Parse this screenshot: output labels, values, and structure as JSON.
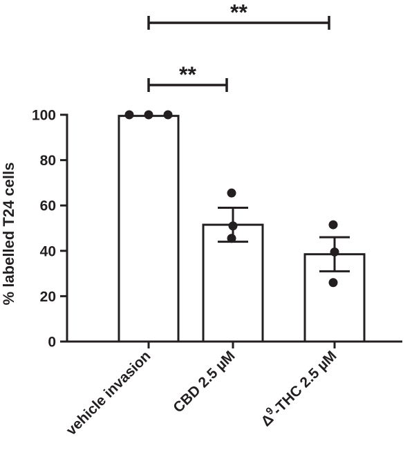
{
  "chart_data": {
    "type": "bar",
    "categories": [
      "vehicle invasion",
      "CBD 2.5 µM",
      "-THC 2.5 µM"
    ],
    "category_prefix": [
      "",
      "",
      "Δ"
    ],
    "category_superscript": [
      "",
      "",
      "9"
    ],
    "means": [
      99.5,
      51.5,
      38.5
    ],
    "sem": [
      0.5,
      7.5,
      7.5
    ],
    "points": [
      [
        100,
        100,
        100
      ],
      [
        65.5,
        51,
        45.5
      ],
      [
        51.5,
        39.5,
        26
      ]
    ],
    "ylabel": "% labelled T24 cells",
    "xlabel": "",
    "ylim": [
      0,
      100
    ],
    "yticks": [
      0,
      20,
      40,
      60,
      80,
      100
    ],
    "significance": [
      {
        "from": 0,
        "to": 1,
        "label": "**"
      },
      {
        "from": 0,
        "to": 2,
        "label": "**"
      }
    ],
    "grid": false,
    "bar_fill": "#ffffff",
    "ink_color": "#231f20"
  }
}
